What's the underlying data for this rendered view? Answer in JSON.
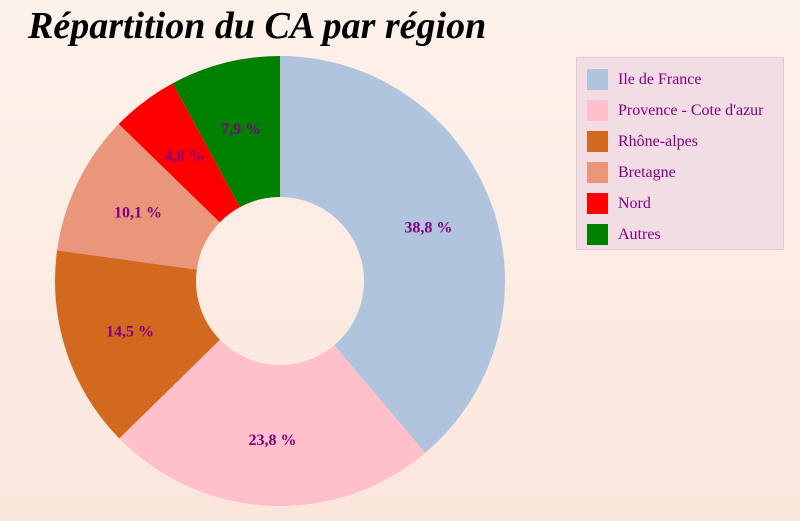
{
  "chart_data": {
    "type": "pie",
    "title": "Répartition du CA par région",
    "categories": [
      "Ile de France",
      "Provence - Cote d'azur",
      "Rhône-alpes",
      "Bretagne",
      "Nord",
      "Autres"
    ],
    "values": [
      38.8,
      23.8,
      14.5,
      10.1,
      4.8,
      7.9
    ],
    "data_labels": [
      "38,8 %",
      "23,8 %",
      "14,5 %",
      "10,1 %",
      "4,8 %",
      "7,9 %"
    ],
    "colors": [
      "#b0c4de",
      "#ffc0cb",
      "#d2691e",
      "#e9967a",
      "#ff0000",
      "#008000"
    ],
    "legend_position": "right",
    "donut": true
  }
}
